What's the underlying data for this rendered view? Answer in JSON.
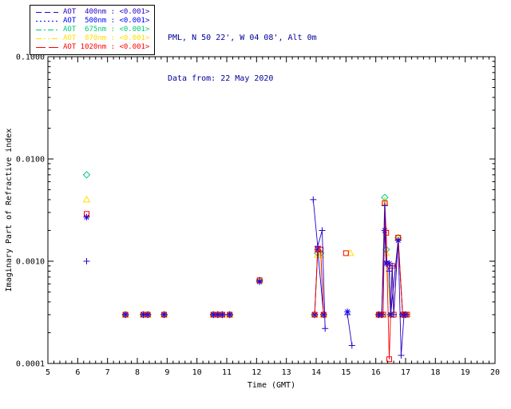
{
  "header": {
    "site_line": "PML, N 50 22', W 04 08', Alt 0m",
    "date_line": "Data from: 22 May 2020",
    "text_color": "#000099"
  },
  "legend": {
    "entries": [
      {
        "label": "AOT  400nm",
        "value": "<0.001>",
        "color": "#2a00c8",
        "dash": "7 4",
        "marker": "plus"
      },
      {
        "label": "AOT  500nm",
        "value": "<0.001>",
        "color": "#0000ff",
        "dash": "2 3",
        "marker": "asterisk"
      },
      {
        "label": "AOT  675nm",
        "value": "<0.001>",
        "color": "#00c878",
        "dash": "7 3 2 3",
        "marker": "diamond"
      },
      {
        "label": "AOT  870nm",
        "value": "<0.001>",
        "color": "#ffdd00",
        "dash": "7 3 2 3 2 3",
        "marker": "triangle"
      },
      {
        "label": "AOT 1020nm",
        "value": "<0.001>",
        "color": "#ff0000",
        "dash": "12 4",
        "marker": "square"
      }
    ]
  },
  "chart_data": {
    "type": "scatter",
    "title": "",
    "xlabel": "Time (GMT)",
    "ylabel": "Imaginary Part of Refractive index",
    "xlim": [
      5,
      20
    ],
    "ylim": [
      0.0001,
      0.1
    ],
    "yscale": "log",
    "grid": false,
    "legend_position": "top-left",
    "x_ticks": [
      5,
      6,
      7,
      8,
      9,
      10,
      11,
      12,
      13,
      14,
      15,
      16,
      17,
      18,
      19,
      20
    ],
    "y_ticks": [
      0.0001,
      0.001,
      0.01,
      0.1
    ],
    "y_tick_labels": [
      "0.0001",
      "0.0010",
      "0.0100",
      "0.1000"
    ],
    "series": [
      {
        "name": "AOT 675nm",
        "wavelength_nm": 675,
        "marker": "diamond",
        "color": "#00c878",
        "points": [
          [
            6.3,
            0.007
          ],
          [
            7.6,
            0.0003
          ],
          [
            8.2,
            0.0003
          ],
          [
            8.35,
            0.0003
          ],
          [
            8.9,
            0.0003
          ],
          [
            10.55,
            0.0003
          ],
          [
            10.7,
            0.0003
          ],
          [
            10.85,
            0.0003
          ],
          [
            11.1,
            0.0003
          ],
          [
            12.1,
            0.00065
          ],
          [
            13.95,
            0.0003
          ],
          [
            14.05,
            0.0012
          ],
          [
            14.15,
            0.0012
          ],
          [
            14.25,
            0.0003
          ],
          [
            16.1,
            0.0003
          ],
          [
            16.2,
            0.0003
          ],
          [
            16.3,
            0.0042
          ],
          [
            16.35,
            0.0013
          ],
          [
            16.5,
            0.0003
          ],
          [
            16.75,
            0.0017
          ],
          [
            16.9,
            0.0003
          ],
          [
            17.0,
            0.0003
          ]
        ]
      },
      {
        "name": "AOT 870nm",
        "wavelength_nm": 870,
        "marker": "triangle",
        "color": "#ffdd00",
        "points": [
          [
            6.3,
            0.004
          ],
          [
            7.6,
            0.0003
          ],
          [
            8.2,
            0.0003
          ],
          [
            8.35,
            0.0003
          ],
          [
            8.9,
            0.0003
          ],
          [
            10.55,
            0.0003
          ],
          [
            10.7,
            0.0003
          ],
          [
            10.85,
            0.0003
          ],
          [
            11.1,
            0.0003
          ],
          [
            12.1,
            0.00065
          ],
          [
            13.95,
            0.0003
          ],
          [
            14.05,
            0.00115
          ],
          [
            14.15,
            0.00115
          ],
          [
            14.25,
            0.0003
          ],
          [
            15.15,
            0.0012
          ],
          [
            16.1,
            0.0003
          ],
          [
            16.2,
            0.0003
          ],
          [
            16.3,
            0.0038
          ],
          [
            16.35,
            0.0012
          ],
          [
            16.5,
            0.0003
          ],
          [
            16.75,
            0.0017
          ],
          [
            16.9,
            0.0003
          ],
          [
            17.0,
            0.0003
          ]
        ]
      },
      {
        "name": "AOT 500nm",
        "wavelength_nm": 500,
        "marker": "asterisk",
        "color": "#0000ff",
        "points": [
          [
            6.3,
            0.0027
          ],
          [
            7.6,
            0.0003
          ],
          [
            8.2,
            0.0003
          ],
          [
            8.35,
            0.0003
          ],
          [
            8.9,
            0.0003
          ],
          [
            10.55,
            0.0003
          ],
          [
            10.7,
            0.0003
          ],
          [
            10.85,
            0.0003
          ],
          [
            11.1,
            0.0003
          ],
          [
            12.1,
            0.00063
          ],
          [
            13.95,
            0.0003
          ],
          [
            14.05,
            0.0013
          ],
          [
            14.25,
            0.0003
          ],
          [
            15.05,
            0.00032
          ],
          [
            16.1,
            0.0003
          ],
          [
            16.2,
            0.0003
          ],
          [
            16.3,
            0.002
          ],
          [
            16.35,
            0.00095
          ],
          [
            16.45,
            0.00095
          ],
          [
            16.5,
            0.0003
          ],
          [
            16.75,
            0.0016
          ],
          [
            16.9,
            0.0003
          ],
          [
            17.0,
            0.0003
          ]
        ]
      },
      {
        "name": "AOT 1020nm",
        "wavelength_nm": 1020,
        "marker": "square",
        "color": "#ff0000",
        "points": [
          [
            6.3,
            0.0029
          ],
          [
            7.6,
            0.0003
          ],
          [
            8.2,
            0.0003
          ],
          [
            8.35,
            0.0003
          ],
          [
            8.9,
            0.0003
          ],
          [
            10.55,
            0.0003
          ],
          [
            10.7,
            0.0003
          ],
          [
            10.85,
            0.0003
          ],
          [
            11.1,
            0.0003
          ],
          [
            12.1,
            0.00065
          ],
          [
            13.95,
            0.0003
          ],
          [
            14.05,
            0.0013
          ],
          [
            14.15,
            0.0013
          ],
          [
            14.25,
            0.0003
          ],
          [
            15.0,
            0.0012
          ],
          [
            16.1,
            0.0003
          ],
          [
            16.15,
            0.0003
          ],
          [
            16.25,
            0.0003
          ],
          [
            16.3,
            0.0037
          ],
          [
            16.35,
            0.0019
          ],
          [
            16.45,
            0.00011
          ],
          [
            16.55,
            0.0009
          ],
          [
            16.6,
            0.0003
          ],
          [
            16.75,
            0.0017
          ],
          [
            16.9,
            0.0003
          ],
          [
            17.0,
            0.0003
          ],
          [
            17.05,
            0.0003
          ]
        ]
      },
      {
        "name": "AOT 400nm",
        "wavelength_nm": 400,
        "marker": "plus",
        "color": "#2a00c8",
        "points": [
          [
            6.3,
            0.001
          ],
          [
            7.6,
            0.0003
          ],
          [
            8.2,
            0.0003
          ],
          [
            8.35,
            0.0003
          ],
          [
            8.9,
            0.0003
          ],
          [
            10.55,
            0.0003
          ],
          [
            10.7,
            0.0003
          ],
          [
            10.85,
            0.0003
          ],
          [
            11.1,
            0.0003
          ],
          [
            12.1,
            0.00065
          ],
          [
            13.9,
            0.004
          ],
          [
            14.05,
            0.0014
          ],
          [
            14.2,
            0.002
          ],
          [
            14.3,
            0.00022
          ],
          [
            15.05,
            0.0003
          ],
          [
            15.2,
            0.00015
          ],
          [
            16.1,
            0.0003
          ],
          [
            16.2,
            0.0003
          ],
          [
            16.3,
            0.0035
          ],
          [
            16.35,
            0.001
          ],
          [
            16.45,
            0.0008
          ],
          [
            16.5,
            0.0003
          ],
          [
            16.55,
            0.0009
          ],
          [
            16.6,
            0.0003
          ],
          [
            16.75,
            0.0016
          ],
          [
            16.85,
            0.00012
          ],
          [
            16.95,
            0.0003
          ],
          [
            17.0,
            0.0003
          ]
        ]
      }
    ]
  }
}
